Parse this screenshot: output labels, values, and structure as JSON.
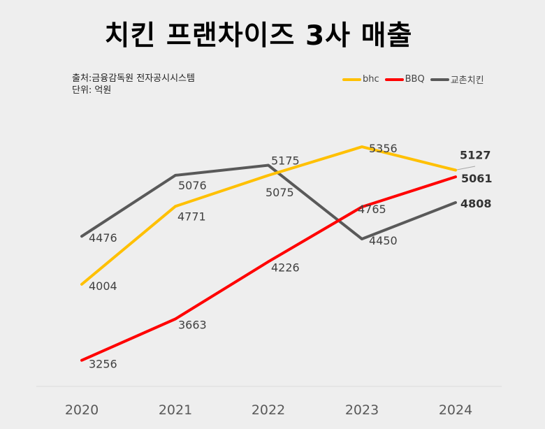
{
  "title": "치킨 프랜차이즈 3사 매출",
  "source": "출처:금융감독원 전자공시시스템",
  "unit": "단위: 억원",
  "chart_data": {
    "type": "line",
    "title": "치킨 프랜차이즈 3사 매출",
    "xlabel": "",
    "ylabel": "",
    "categories": [
      "2020",
      "2021",
      "2022",
      "2023",
      "2024"
    ],
    "ylim": [
      3000,
      6800
    ],
    "grid": false,
    "legend": "top-right",
    "series": [
      {
        "name": "bhc",
        "color": "#ffc000",
        "values": [
          4004,
          4771,
          5075,
          5356,
          5127
        ],
        "labels": [
          "4004",
          "4771",
          "5075",
          "5356",
          "5127"
        ]
      },
      {
        "name": "BBQ",
        "color": "#ff0000",
        "values": [
          3256,
          3663,
          4226,
          4765,
          5061
        ],
        "labels": [
          "3256",
          "3663",
          "4226",
          "4765",
          "5061"
        ]
      },
      {
        "name": "교촌치킨",
        "color": "#595959",
        "values": [
          4476,
          5076,
          5175,
          4450,
          4808
        ],
        "labels": [
          "4476",
          "5076",
          "5175",
          "4450",
          "4808"
        ]
      }
    ]
  }
}
